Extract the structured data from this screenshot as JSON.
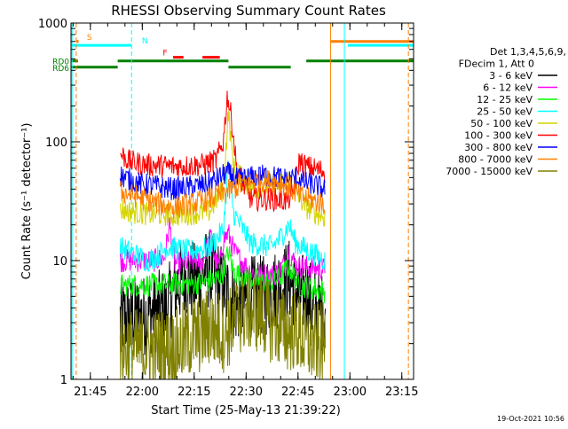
{
  "chart_data": {
    "type": "line",
    "title": "RHESSI Observing Summary Count Rates",
    "xlabel": "Start Time (25-May-13 21:39:22)",
    "ylabel": "Count Rate (s⁻¹ detector⁻¹)",
    "x_unit": "minutes after 21:39:22",
    "xlim": [
      0,
      99
    ],
    "ylim": [
      1,
      1000
    ],
    "yscale": "log",
    "x_ticks": [
      {
        "x": 5.6,
        "label": "21:45"
      },
      {
        "x": 20.6,
        "label": "22:00"
      },
      {
        "x": 35.6,
        "label": "22:15"
      },
      {
        "x": 50.6,
        "label": "22:30"
      },
      {
        "x": 65.6,
        "label": "22:45"
      },
      {
        "x": 80.6,
        "label": "23:00"
      },
      {
        "x": 95.6,
        "label": "23:15"
      }
    ],
    "y_ticks": [
      {
        "y": 1,
        "label": "1"
      },
      {
        "y": 10,
        "label": "10"
      },
      {
        "y": 100,
        "label": "100"
      },
      {
        "y": 1000,
        "label": "1000"
      }
    ],
    "grid": false,
    "legend_position": "right",
    "legend_header": [
      "Det 1,3,4,5,6,9,",
      "FDecim 1, Att 0"
    ],
    "footer_stamp": "19-Oct-2021 10:56",
    "data_window": [
      14.2,
      73.5
    ],
    "series": [
      {
        "name": "3 - 6 keV",
        "color": "#000000",
        "style": "noisy",
        "points": [
          [
            14.2,
            3.2
          ],
          [
            22,
            3.5
          ],
          [
            28,
            4
          ],
          [
            30,
            6
          ],
          [
            33,
            7
          ],
          [
            36,
            6.5
          ],
          [
            38,
            8
          ],
          [
            40,
            8.5
          ],
          [
            44,
            6
          ],
          [
            48,
            4.2
          ],
          [
            52,
            5
          ],
          [
            56,
            5
          ],
          [
            60,
            6
          ],
          [
            63,
            7
          ],
          [
            66,
            5
          ],
          [
            68,
            5.5
          ],
          [
            70,
            4
          ],
          [
            73.5,
            3.5
          ]
        ]
      },
      {
        "name": "6 - 12 keV",
        "color": "#ff00ff",
        "points": [
          [
            14.2,
            10
          ],
          [
            24,
            10
          ],
          [
            27,
            10.5
          ],
          [
            28.5,
            20
          ],
          [
            30,
            9.5
          ],
          [
            38,
            10
          ],
          [
            39.5,
            13
          ],
          [
            40.5,
            16
          ],
          [
            41.5,
            10
          ],
          [
            43,
            9
          ],
          [
            44,
            15
          ],
          [
            45.5,
            17
          ],
          [
            47,
            12
          ],
          [
            52,
            8
          ],
          [
            58,
            7.5
          ],
          [
            60,
            8
          ],
          [
            62,
            10
          ],
          [
            63,
            12
          ],
          [
            65,
            9
          ],
          [
            73.5,
            8.5
          ]
        ]
      },
      {
        "name": "12 - 25 keV",
        "color": "#00ff00",
        "points": [
          [
            14.2,
            6.2
          ],
          [
            30,
            6.3
          ],
          [
            38,
            6.5
          ],
          [
            42,
            7
          ],
          [
            44,
            8
          ],
          [
            45.5,
            12
          ],
          [
            47,
            8
          ],
          [
            52,
            7
          ],
          [
            58,
            6.5
          ],
          [
            61,
            7.5
          ],
          [
            63,
            9
          ],
          [
            66,
            6.2
          ],
          [
            73.5,
            5.5
          ]
        ]
      },
      {
        "name": "25 - 50 keV",
        "color": "#00ffff",
        "points": [
          [
            14.2,
            13
          ],
          [
            22,
            10
          ],
          [
            25,
            11
          ],
          [
            28,
            13
          ],
          [
            34,
            12
          ],
          [
            40,
            13
          ],
          [
            44,
            18
          ],
          [
            45.5,
            70
          ],
          [
            47,
            25
          ],
          [
            52,
            14
          ],
          [
            58,
            13
          ],
          [
            60,
            15
          ],
          [
            62,
            18
          ],
          [
            63,
            20
          ],
          [
            65,
            14
          ],
          [
            73.5,
            10
          ]
        ]
      },
      {
        "name": "50 - 100 keV",
        "color": "#ffff00",
        "stroke": "#d4d400",
        "points": [
          [
            14.2,
            27
          ],
          [
            20,
            25
          ],
          [
            30,
            24
          ],
          [
            40,
            26
          ],
          [
            44,
            40
          ],
          [
            45.5,
            180
          ],
          [
            47,
            60
          ],
          [
            52,
            40
          ],
          [
            56,
            42
          ],
          [
            60,
            44
          ],
          [
            62,
            46
          ],
          [
            63.5,
            50
          ],
          [
            65,
            38
          ],
          [
            68,
            28
          ],
          [
            73.5,
            23
          ]
        ]
      },
      {
        "name": "100 - 300 keV",
        "color": "#ff0000",
        "points": [
          [
            14.2,
            80
          ],
          [
            17,
            68
          ],
          [
            22,
            64
          ],
          [
            30,
            62
          ],
          [
            38,
            64
          ],
          [
            42,
            70
          ],
          [
            44,
            100
          ],
          [
            45.2,
            250
          ],
          [
            46.5,
            150
          ],
          [
            48,
            55
          ],
          [
            52,
            33
          ],
          [
            58,
            33
          ],
          [
            62,
            32
          ],
          [
            64,
            35
          ],
          [
            66,
            70
          ],
          [
            68,
            62
          ],
          [
            73.5,
            56
          ]
        ]
      },
      {
        "name": "300 - 800 keV",
        "color": "#0000ff",
        "points": [
          [
            14.2,
            52
          ],
          [
            20,
            44
          ],
          [
            30,
            40
          ],
          [
            38,
            43
          ],
          [
            42,
            48
          ],
          [
            45,
            55
          ],
          [
            48,
            48
          ],
          [
            52,
            50
          ],
          [
            56,
            52
          ],
          [
            60,
            50
          ],
          [
            63,
            48
          ],
          [
            65,
            50
          ],
          [
            67,
            46
          ],
          [
            73.5,
            40
          ]
        ]
      },
      {
        "name": "800 - 7000 keV",
        "color": "#ff8000",
        "points": [
          [
            14.2,
            38
          ],
          [
            20,
            34
          ],
          [
            25,
            30
          ],
          [
            30,
            28
          ],
          [
            35,
            30
          ],
          [
            40,
            33
          ],
          [
            45,
            38
          ],
          [
            50,
            44
          ],
          [
            55,
            48
          ],
          [
            60,
            46
          ],
          [
            63,
            42
          ],
          [
            66,
            35
          ],
          [
            70,
            32
          ],
          [
            73.5,
            30
          ]
        ]
      },
      {
        "name": "7000 - 15000 keV",
        "color": "#808000",
        "style": "noisy",
        "points": [
          [
            14.2,
            1.8
          ],
          [
            20,
            1.8
          ],
          [
            25,
            1.8
          ],
          [
            30,
            1.8
          ],
          [
            34,
            2.2
          ],
          [
            38,
            2.5
          ],
          [
            40,
            2.8
          ],
          [
            44,
            2.5
          ],
          [
            46,
            2.8
          ],
          [
            48,
            3.5
          ],
          [
            52,
            3.8
          ],
          [
            56,
            3.5
          ],
          [
            58,
            3
          ],
          [
            60,
            2.8
          ],
          [
            62,
            2.5
          ],
          [
            65,
            2.6
          ],
          [
            68,
            2
          ],
          [
            73.5,
            2
          ]
        ]
      }
    ],
    "flags": [
      {
        "label": "S",
        "color": "#ff8000",
        "level": 700,
        "segments": [
          [
            1.5,
            2.2
          ],
          [
            75,
            99
          ]
        ]
      },
      {
        "label": "",
        "color": "#00ffff",
        "level": 650,
        "segments": [
          [
            0,
            17.5
          ],
          [
            80,
            99
          ]
        ]
      },
      {
        "label": "N",
        "color": "#00ffff",
        "level": 650,
        "segments": [],
        "label_x": 20.5
      },
      {
        "label": "F",
        "color": "#ff0000",
        "level": 515,
        "segments": [
          [
            29.5,
            32.5
          ],
          [
            38,
            43
          ]
        ],
        "label_x": 26.5
      },
      {
        "label": "RD0",
        "color": "#008000",
        "level": 480,
        "segments": [
          [
            0,
            2
          ],
          [
            13.5,
            45.5
          ],
          [
            68,
            99
          ]
        ]
      },
      {
        "label": "RD6",
        "color": "#008000",
        "level": 425,
        "segments": [
          [
            0,
            13.5
          ],
          [
            45.5,
            63.5
          ]
        ]
      }
    ],
    "vertical_markers": [
      {
        "x": 0.3,
        "color": "#00ffff",
        "dash": false
      },
      {
        "x": 1.5,
        "color": "#ff8000",
        "dash": true
      },
      {
        "x": 17.5,
        "color": "#00ffff",
        "dash": true
      },
      {
        "x": 75,
        "color": "#ff8000",
        "dash": false
      },
      {
        "x": 79,
        "color": "#00ffff",
        "dash": false
      },
      {
        "x": 97.5,
        "color": "#ff8000",
        "dash": true
      }
    ]
  }
}
